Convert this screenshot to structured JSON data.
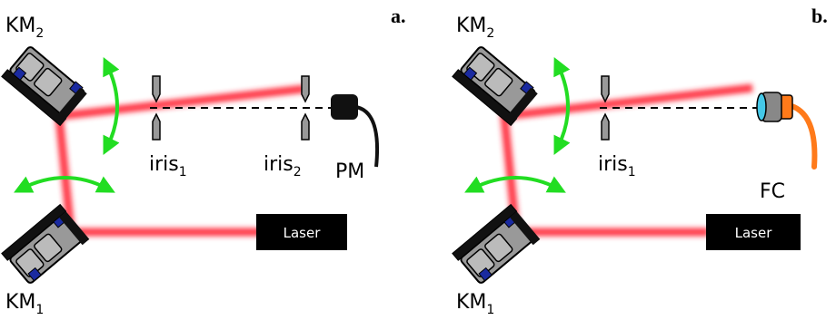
{
  "panels": {
    "a": {
      "tag": "a.",
      "km_top": {
        "base": "KM",
        "sub": "2"
      },
      "km_bottom": {
        "base": "KM",
        "sub": "1"
      },
      "iris1": {
        "base": "iris",
        "sub": "1"
      },
      "iris2": {
        "base": "iris",
        "sub": "2"
      },
      "detector": "PM",
      "laser": "Laser"
    },
    "b": {
      "tag": "b.",
      "km_top": {
        "base": "KM",
        "sub": "2"
      },
      "km_bottom": {
        "base": "KM",
        "sub": "1"
      },
      "iris1": {
        "base": "iris",
        "sub": "1"
      },
      "detector": "FC",
      "laser": "Laser"
    }
  },
  "colors": {
    "beam": "#ff2233",
    "arrow": "#22dd22",
    "fiber": "#ff7a1a",
    "connector": "#44c8e8"
  }
}
